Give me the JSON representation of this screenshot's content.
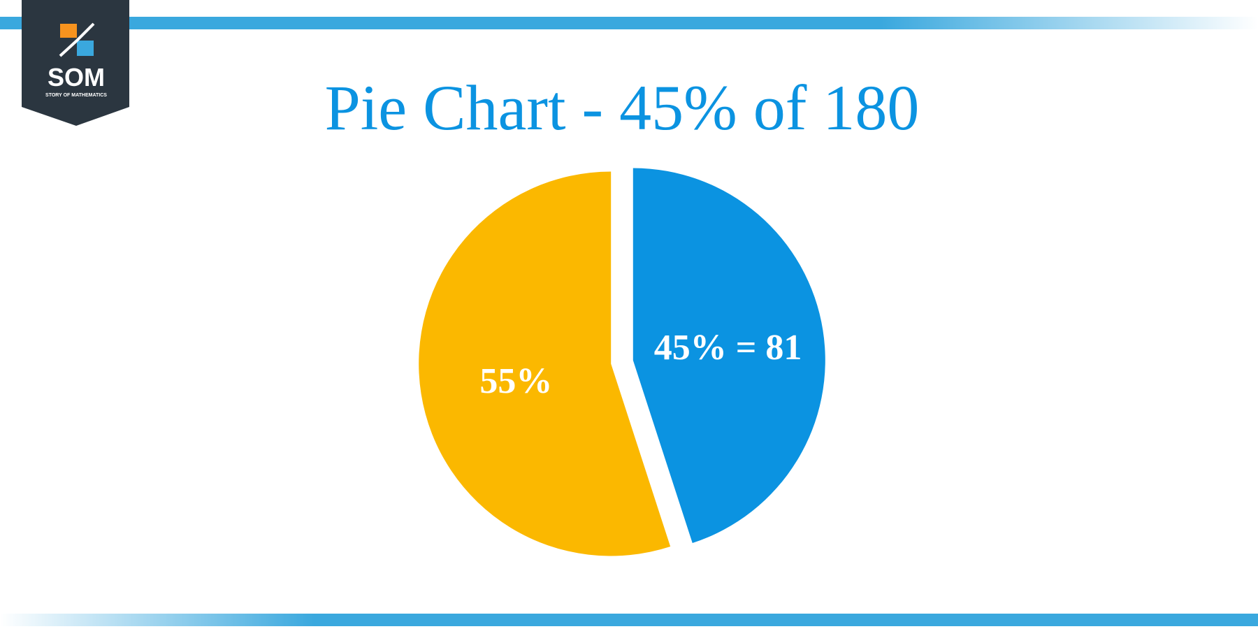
{
  "logo": {
    "text": "SOM",
    "subtitle": "STORY OF MATHEMATICS"
  },
  "chart_data": {
    "type": "pie",
    "title": "Pie Chart - 45% of 180",
    "values": [
      45,
      55
    ],
    "value_labels": [
      "45% = 81",
      "55%"
    ],
    "colors": [
      "#0b93e1",
      "#fbb800"
    ]
  }
}
